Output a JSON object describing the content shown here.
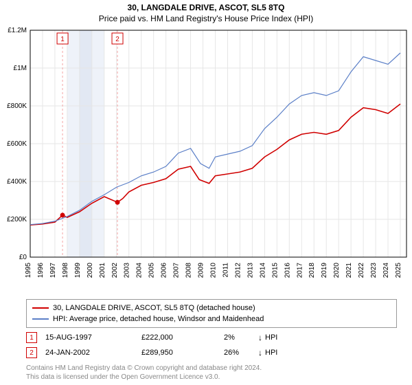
{
  "title": "30, LANGDALE DRIVE, ASCOT, SL5 8TQ",
  "subtitle": "Price paid vs. HM Land Registry's House Price Index (HPI)",
  "chart": {
    "type": "line",
    "background_color": "#ffffff",
    "plot_background": "#ffffff",
    "grid_color": "#e6e6e6",
    "axis_color": "#000000",
    "x": {
      "min": 1995,
      "max": 2025.5,
      "ticks": [
        1995,
        1996,
        1997,
        1998,
        1999,
        2000,
        2001,
        2002,
        2003,
        2004,
        2005,
        2006,
        2007,
        2008,
        2009,
        2010,
        2011,
        2012,
        2013,
        2014,
        2015,
        2016,
        2017,
        2018,
        2019,
        2020,
        2021,
        2022,
        2023,
        2024,
        2025
      ],
      "tick_fontsize": 10,
      "tick_rotation": -90
    },
    "y": {
      "min": 0,
      "max": 1200000,
      "ticks": [
        0,
        200000,
        400000,
        600000,
        800000,
        1000000,
        1200000
      ],
      "tick_labels": [
        "£0",
        "£200K",
        "£400K",
        "£600K",
        "£800K",
        "£1M",
        "£1.2M"
      ],
      "tick_fontsize": 10
    },
    "shaded_bands": [
      {
        "from": 1998,
        "to": 1999,
        "color": "#eef2f9"
      },
      {
        "from": 1999,
        "to": 2000,
        "color": "#e2e8f3"
      },
      {
        "from": 2000,
        "to": 2001,
        "color": "#eef2f9"
      }
    ],
    "sale_markers": [
      {
        "n": "1",
        "x": 1997.62,
        "y": 222000,
        "line_color": "#f4a6a6",
        "box_border": "#d00000"
      },
      {
        "n": "2",
        "x": 2002.07,
        "y": 289950,
        "line_color": "#f4a6a6",
        "box_border": "#d00000"
      }
    ],
    "series": [
      {
        "name": "red",
        "label": "30, LANGDALE DRIVE, ASCOT, SL5 8TQ (detached house)",
        "color": "#d00000",
        "width": 1.6,
        "points": [
          [
            1995,
            170000
          ],
          [
            1996,
            175000
          ],
          [
            1997,
            185000
          ],
          [
            1997.62,
            222000
          ],
          [
            1998,
            210000
          ],
          [
            1999,
            240000
          ],
          [
            2000,
            285000
          ],
          [
            2001,
            320000
          ],
          [
            2002.07,
            289950
          ],
          [
            2002.5,
            310000
          ],
          [
            2003,
            345000
          ],
          [
            2004,
            380000
          ],
          [
            2005,
            395000
          ],
          [
            2006,
            415000
          ],
          [
            2007,
            465000
          ],
          [
            2008,
            480000
          ],
          [
            2008.7,
            410000
          ],
          [
            2009.5,
            390000
          ],
          [
            2010,
            430000
          ],
          [
            2011,
            440000
          ],
          [
            2012,
            450000
          ],
          [
            2013,
            470000
          ],
          [
            2014,
            530000
          ],
          [
            2015,
            570000
          ],
          [
            2016,
            620000
          ],
          [
            2017,
            650000
          ],
          [
            2018,
            660000
          ],
          [
            2019,
            650000
          ],
          [
            2020,
            670000
          ],
          [
            2021,
            740000
          ],
          [
            2022,
            790000
          ],
          [
            2023,
            780000
          ],
          [
            2024,
            760000
          ],
          [
            2025,
            810000
          ]
        ],
        "marker_points": [
          [
            1997.62,
            222000
          ],
          [
            2002.07,
            289950
          ]
        ],
        "marker_radius": 3.5
      },
      {
        "name": "blue",
        "label": "HPI: Average price, detached house, Windsor and Maidenhead",
        "color": "#5b7fc7",
        "width": 1.2,
        "points": [
          [
            1995,
            172000
          ],
          [
            1996,
            178000
          ],
          [
            1997,
            190000
          ],
          [
            1998,
            215000
          ],
          [
            1999,
            248000
          ],
          [
            2000,
            295000
          ],
          [
            2001,
            330000
          ],
          [
            2002,
            370000
          ],
          [
            2003,
            395000
          ],
          [
            2004,
            430000
          ],
          [
            2005,
            450000
          ],
          [
            2006,
            480000
          ],
          [
            2007,
            550000
          ],
          [
            2008,
            575000
          ],
          [
            2008.8,
            495000
          ],
          [
            2009.5,
            470000
          ],
          [
            2010,
            530000
          ],
          [
            2011,
            545000
          ],
          [
            2012,
            560000
          ],
          [
            2013,
            590000
          ],
          [
            2014,
            680000
          ],
          [
            2015,
            740000
          ],
          [
            2016,
            810000
          ],
          [
            2017,
            855000
          ],
          [
            2018,
            870000
          ],
          [
            2019,
            855000
          ],
          [
            2020,
            880000
          ],
          [
            2021,
            980000
          ],
          [
            2022,
            1060000
          ],
          [
            2023,
            1040000
          ],
          [
            2024,
            1020000
          ],
          [
            2025,
            1080000
          ]
        ]
      }
    ]
  },
  "legend": {
    "red_label": "30, LANGDALE DRIVE, ASCOT, SL5 8TQ (detached house)",
    "blue_label": "HPI: Average price, detached house, Windsor and Maidenhead"
  },
  "sales": [
    {
      "n": "1",
      "date": "15-AUG-1997",
      "price": "£222,000",
      "pct": "2%",
      "dir": "↓",
      "vs": "HPI"
    },
    {
      "n": "2",
      "date": "24-JAN-2002",
      "price": "£289,950",
      "pct": "26%",
      "dir": "↓",
      "vs": "HPI"
    }
  ],
  "footnote1": "Contains HM Land Registry data © Crown copyright and database right 2024.",
  "footnote2": "This data is licensed under the Open Government Licence v3.0."
}
